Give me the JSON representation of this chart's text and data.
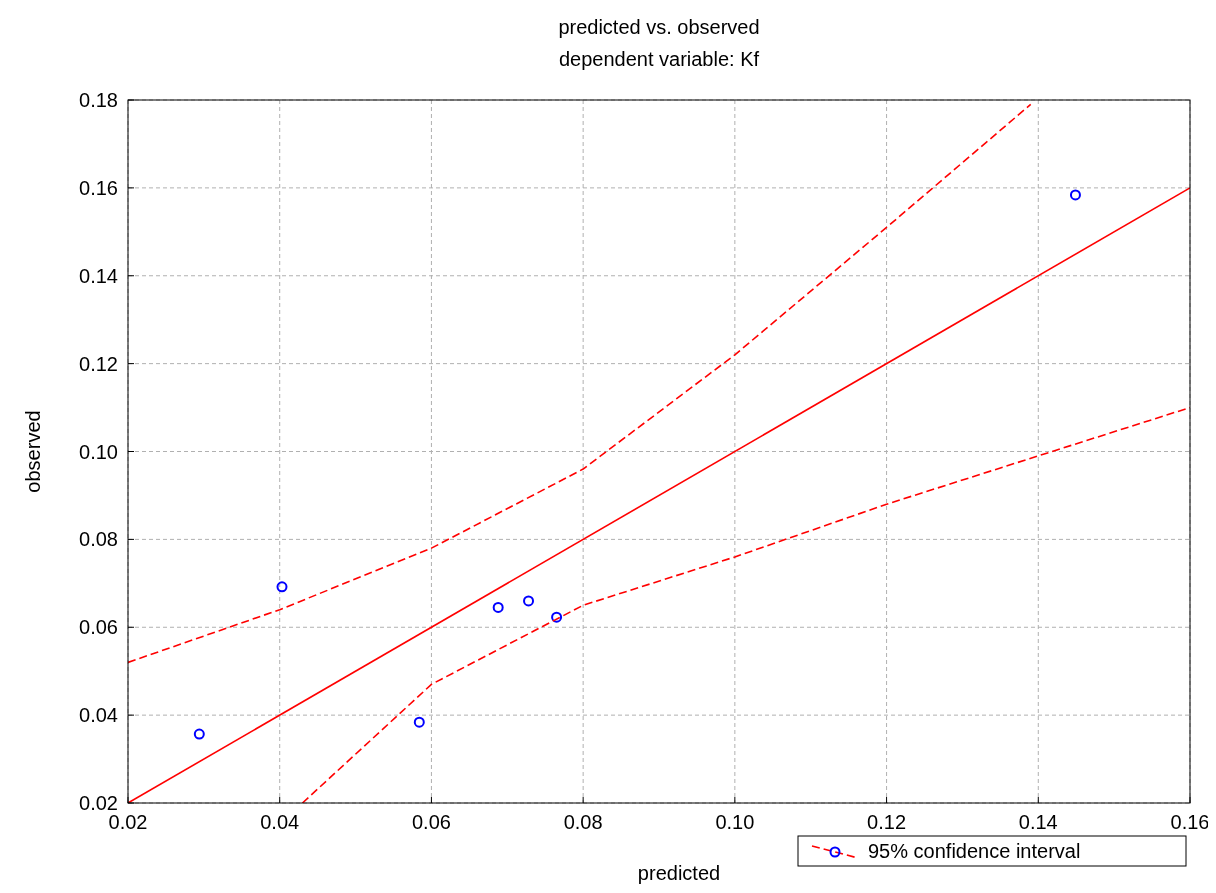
{
  "chart_data": {
    "type": "scatter",
    "title": "predicted vs. observed",
    "subtitle": "dependent variable: Kf",
    "xlabel": "predicted",
    "ylabel": "observed",
    "xlim": [
      0.02,
      0.16
    ],
    "ylim": [
      0.02,
      0.18
    ],
    "xticks": [
      {
        "value": 0.02,
        "label": "0.02"
      },
      {
        "value": 0.04,
        "label": "0.04"
      },
      {
        "value": 0.06,
        "label": "0.06"
      },
      {
        "value": 0.08,
        "label": "0.08"
      },
      {
        "value": 0.1,
        "label": "0.10"
      },
      {
        "value": 0.12,
        "label": "0.12"
      },
      {
        "value": 0.14,
        "label": "0.14"
      },
      {
        "value": 0.16,
        "label": "0.16"
      }
    ],
    "yticks": [
      {
        "value": 0.02,
        "label": "0.02"
      },
      {
        "value": 0.04,
        "label": "0.04"
      },
      {
        "value": 0.06,
        "label": "0.06"
      },
      {
        "value": 0.08,
        "label": "0.08"
      },
      {
        "value": 0.1,
        "label": "0.10"
      },
      {
        "value": 0.12,
        "label": "0.12"
      },
      {
        "value": 0.14,
        "label": "0.14"
      },
      {
        "value": 0.16,
        "label": "0.16"
      },
      {
        "value": 0.18,
        "label": "0.18"
      }
    ],
    "grid": true,
    "legend": "bottom right",
    "series": [
      {
        "type": "scatter",
        "color": "#0000ff",
        "marker": "circle",
        "x": [
          0.0294,
          0.0403,
          0.0584,
          0.0688,
          0.0728,
          0.0765,
          0.1449
        ],
        "values": [
          0.0357,
          0.0692,
          0.0384,
          0.0645,
          0.066,
          0.0623,
          0.1584
        ]
      },
      {
        "type": "line",
        "color": "#ff0000",
        "marker": "none",
        "line_style": "solid",
        "x": [
          0.02,
          0.16
        ],
        "values": [
          0.02,
          0.16
        ]
      },
      {
        "type": "line",
        "name": "95% confidence interval",
        "color": "#ff0000",
        "marker": "none",
        "line_style": "dashed",
        "x": [
          0.02,
          0.04,
          0.06,
          0.08,
          0.1,
          0.12,
          0.139
        ],
        "values": [
          0.052,
          0.064,
          0.078,
          0.096,
          0.122,
          0.151,
          0.179
        ]
      },
      {
        "type": "line",
        "color": "#ff0000",
        "marker": "none",
        "line_style": "dashed",
        "x": [
          0.043,
          0.06,
          0.08,
          0.1,
          0.12,
          0.14,
          0.16
        ],
        "values": [
          0.02,
          0.047,
          0.065,
          0.076,
          0.088,
          0.099,
          0.11
        ]
      }
    ]
  }
}
